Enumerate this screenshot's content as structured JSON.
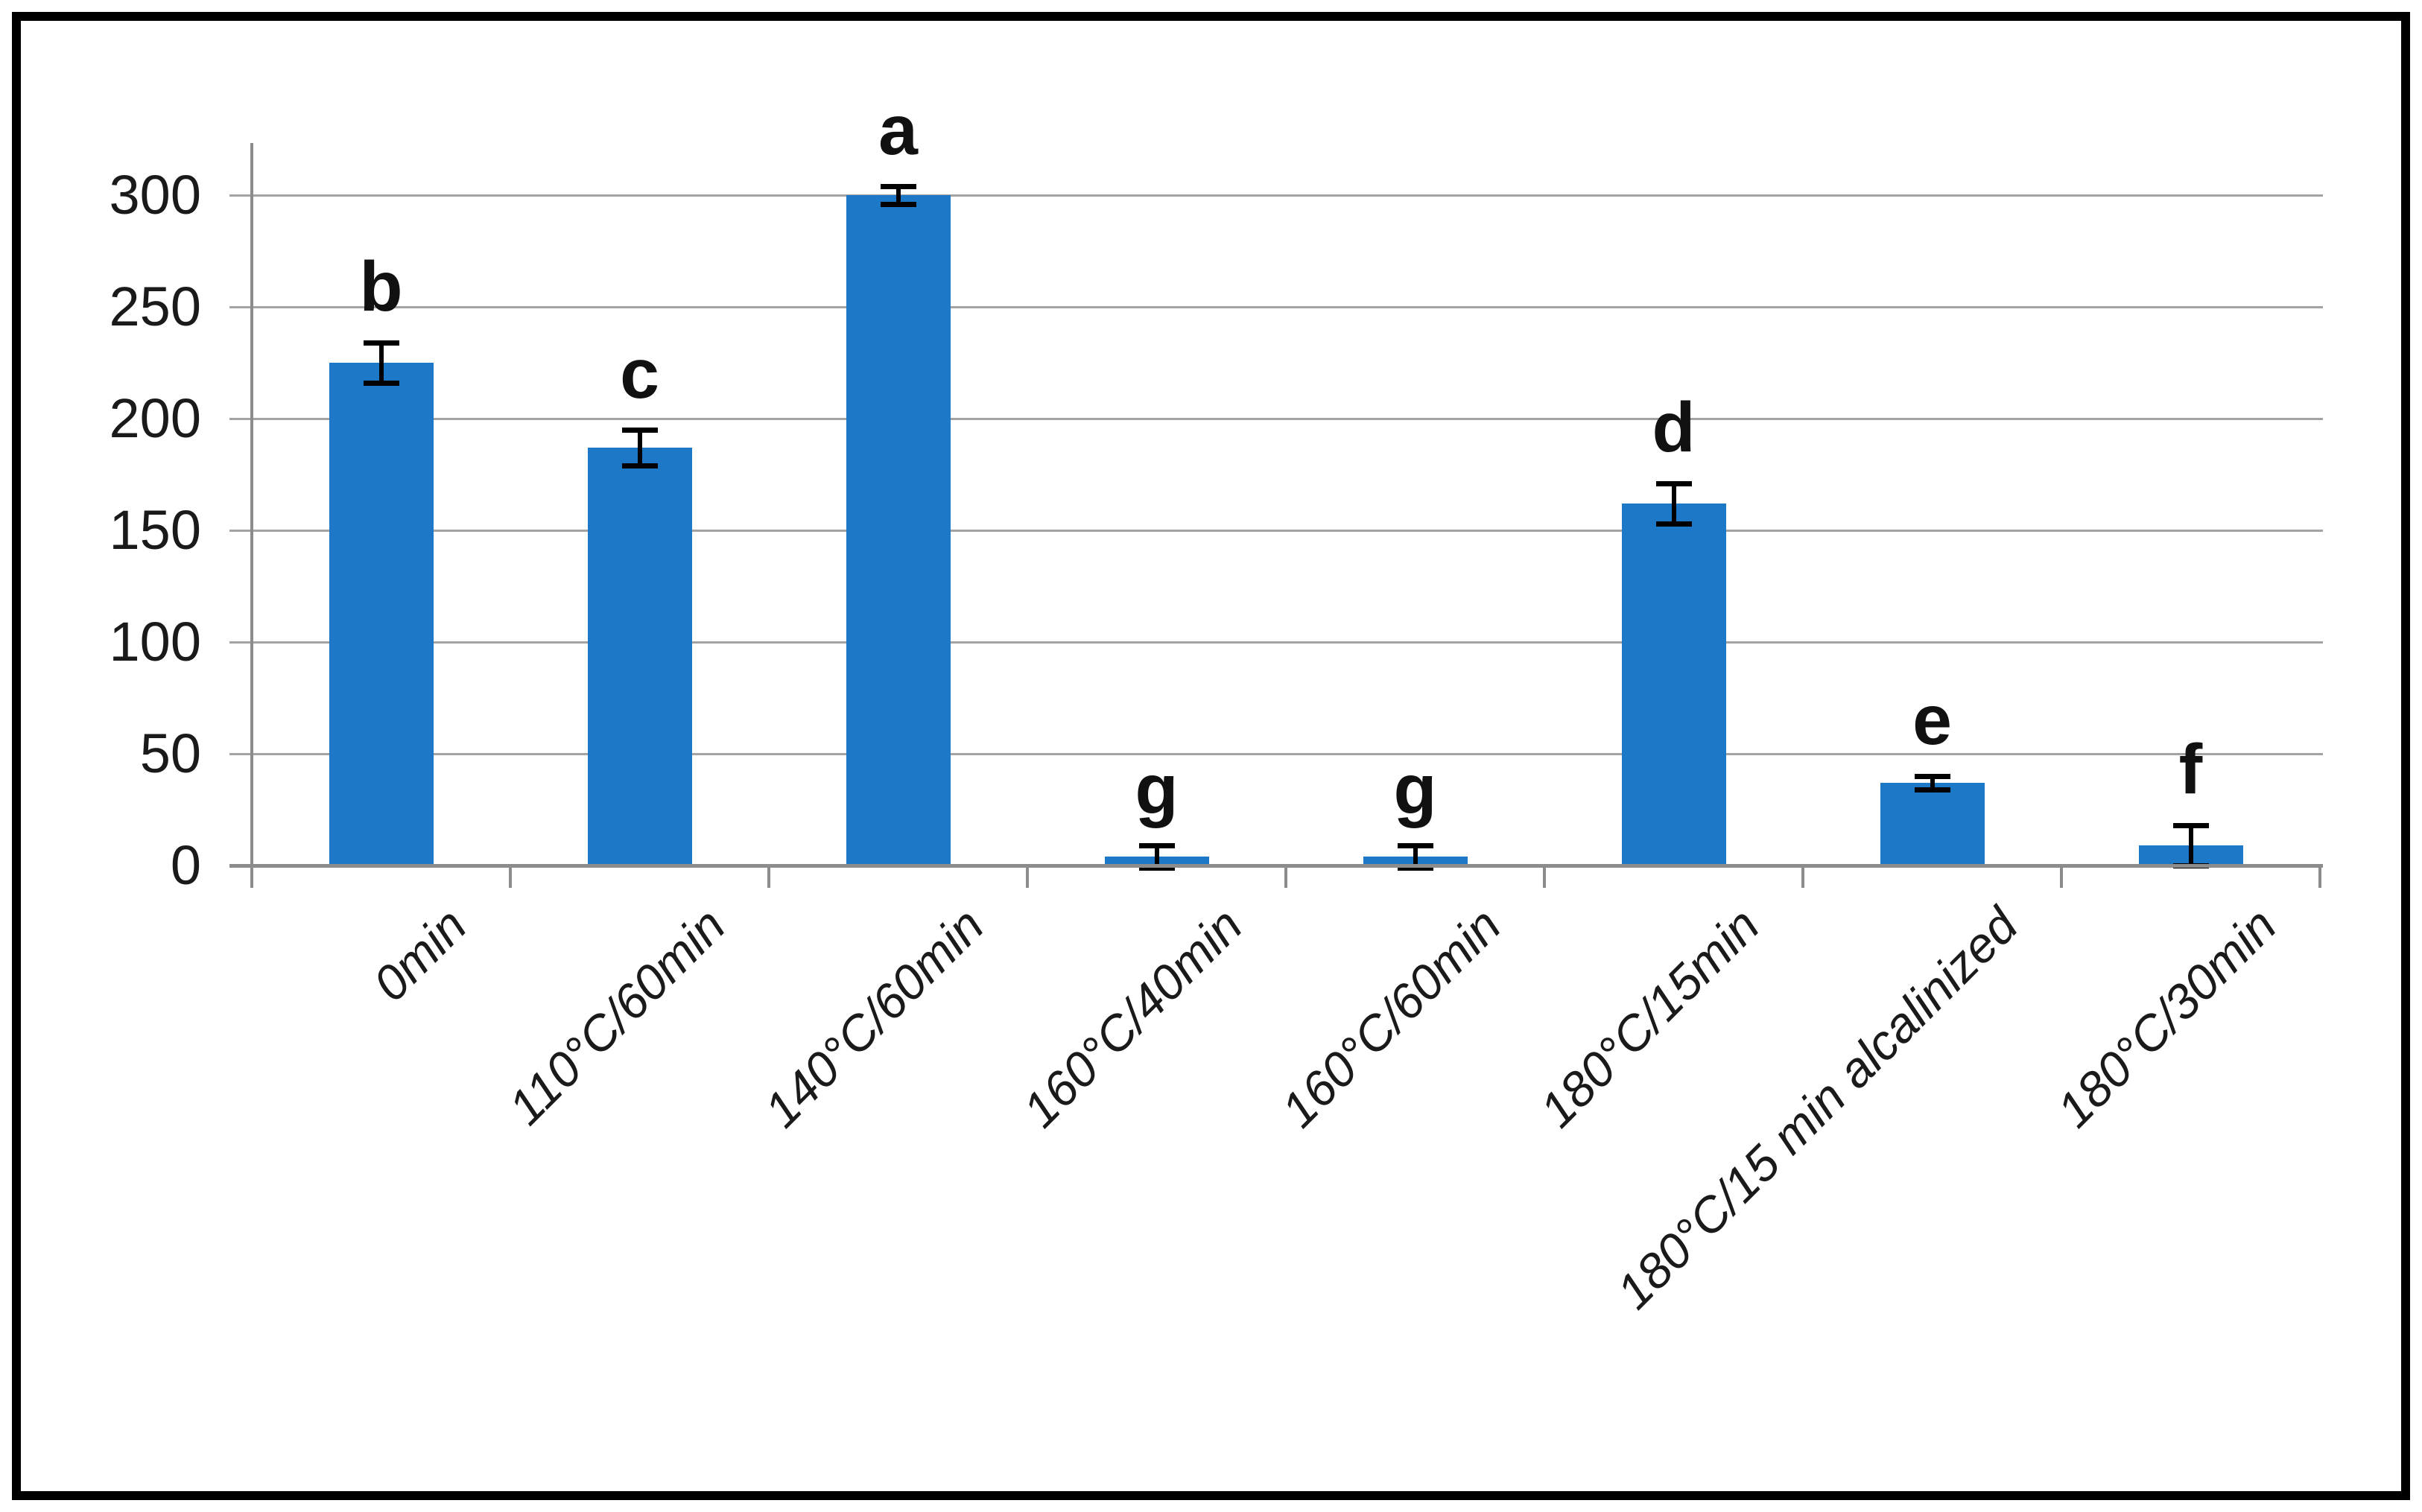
{
  "window": {
    "background_color": "#ffffff",
    "frame_color": "#000000"
  },
  "chart_data": {
    "type": "bar",
    "title": "",
    "xlabel": "",
    "ylabel": "",
    "categories": [
      "0min",
      "110°C/60min",
      "140°C/60min",
      "160°C/40min",
      "160°C/60min",
      "180°C/15min",
      "180°C/15 min alcalinized",
      "180°C/30min"
    ],
    "values": [
      225,
      187,
      300,
      4,
      4,
      162,
      37,
      9
    ],
    "error_bars": [
      9,
      8,
      4,
      5,
      5,
      9,
      3,
      9
    ],
    "bar_labels": [
      "b",
      "c",
      "a",
      "g",
      "g",
      "d",
      "e",
      "f"
    ],
    "yticks": [
      0,
      50,
      100,
      150,
      200,
      250,
      300
    ],
    "ylim": [
      0,
      323
    ],
    "grid": "horizontal gridlines every 50 units, ticks crossing y-axis",
    "legend": "none",
    "x_label_rotation_deg": -45,
    "colors": {
      "bar": "#1E78C8",
      "gridline": "#A3A3A3",
      "axis": "#8C8C8C",
      "error_bar": "#000000",
      "text": "#1A1A1A"
    }
  }
}
